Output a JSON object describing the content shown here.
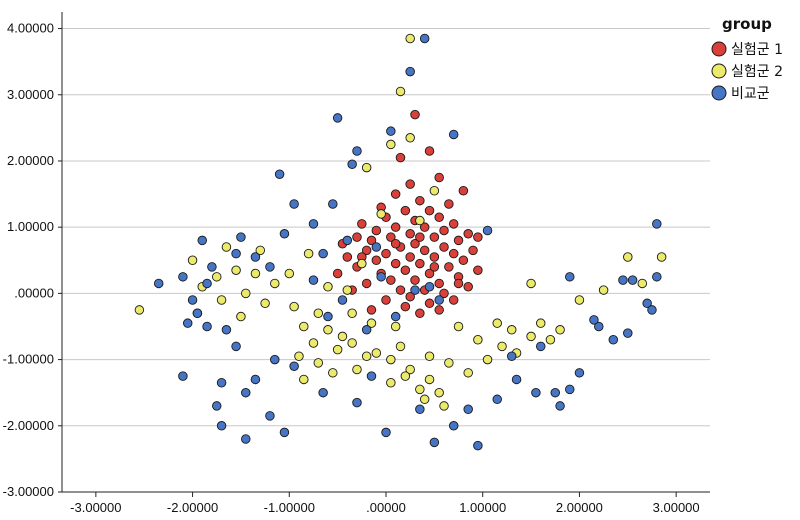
{
  "chart_data": {
    "type": "scatter",
    "title": "",
    "xlabel": "",
    "ylabel": "",
    "xlim": [
      -3.35,
      3.35
    ],
    "ylim": [
      -3.0,
      4.25
    ],
    "x_ticks": [
      -3,
      -2,
      -1,
      0,
      1,
      2,
      3
    ],
    "x_tick_labels": [
      "-3.00000",
      "-2.00000",
      "-1.00000",
      ".00000",
      "1.00000",
      "2.00000",
      "3.00000"
    ],
    "y_ticks": [
      4,
      3,
      2,
      1,
      0,
      -1,
      -2,
      -3
    ],
    "y_tick_labels": [
      "4.00000",
      "3.00000",
      "2.00000",
      "1.00000",
      ".00000",
      "-1.00000",
      "-2.00000",
      "-3.00000"
    ],
    "grid": "horizontal",
    "legend": {
      "title": "group",
      "position": "top-right"
    },
    "series": [
      {
        "name": "실험군 1",
        "color": "#d9403a",
        "points": [
          [
            0.45,
            2.15
          ],
          [
            0.3,
            2.7
          ],
          [
            0.15,
            2.05
          ],
          [
            0.55,
            1.75
          ],
          [
            0.25,
            1.65
          ],
          [
            0.8,
            1.55
          ],
          [
            0.1,
            1.5
          ],
          [
            0.35,
            1.4
          ],
          [
            0.65,
            1.35
          ],
          [
            -0.05,
            1.3
          ],
          [
            0.2,
            1.25
          ],
          [
            0.45,
            1.25
          ],
          [
            0.0,
            1.15
          ],
          [
            0.55,
            1.15
          ],
          [
            0.3,
            1.1
          ],
          [
            -0.25,
            1.05
          ],
          [
            0.7,
            1.05
          ],
          [
            0.1,
            1.0
          ],
          [
            0.4,
            1.0
          ],
          [
            -0.1,
            0.95
          ],
          [
            0.6,
            0.95
          ],
          [
            0.85,
            0.9
          ],
          [
            0.25,
            0.9
          ],
          [
            -0.3,
            0.85
          ],
          [
            0.05,
            0.85
          ],
          [
            0.5,
            0.85
          ],
          [
            0.75,
            0.8
          ],
          [
            -0.15,
            0.8
          ],
          [
            0.3,
            0.75
          ],
          [
            -0.45,
            0.75
          ],
          [
            0.15,
            0.7
          ],
          [
            0.6,
            0.7
          ],
          [
            0.9,
            0.65
          ],
          [
            -0.2,
            0.65
          ],
          [
            0.4,
            0.65
          ],
          [
            0.0,
            0.6
          ],
          [
            0.7,
            0.6
          ],
          [
            -0.4,
            0.55
          ],
          [
            0.25,
            0.55
          ],
          [
            0.5,
            0.55
          ],
          [
            0.8,
            0.5
          ],
          [
            -0.1,
            0.5
          ],
          [
            0.1,
            0.45
          ],
          [
            0.35,
            0.45
          ],
          [
            -0.3,
            0.4
          ],
          [
            0.65,
            0.4
          ],
          [
            0.95,
            0.35
          ],
          [
            0.2,
            0.35
          ],
          [
            -0.05,
            0.3
          ],
          [
            0.45,
            0.3
          ],
          [
            -0.5,
            0.3
          ],
          [
            0.75,
            0.25
          ],
          [
            0.3,
            0.2
          ],
          [
            0.05,
            0.2
          ],
          [
            0.55,
            0.15
          ],
          [
            -0.2,
            0.15
          ],
          [
            0.85,
            0.1
          ],
          [
            0.15,
            0.05
          ],
          [
            0.4,
            0.05
          ],
          [
            -0.35,
            0.05
          ],
          [
            0.6,
            0.0
          ],
          [
            0.25,
            -0.05
          ],
          [
            0.7,
            -0.1
          ],
          [
            0.0,
            -0.1
          ],
          [
            0.45,
            -0.15
          ],
          [
            0.2,
            -0.2
          ],
          [
            -0.15,
            -0.25
          ],
          [
            0.55,
            -0.25
          ],
          [
            0.35,
            -0.3
          ],
          [
            0.75,
            0.15
          ],
          [
            0.95,
            0.85
          ],
          [
            -0.25,
            0.55
          ],
          [
            0.1,
            0.75
          ],
          [
            0.5,
            0.4
          ],
          [
            0.35,
            0.85
          ]
        ]
      },
      {
        "name": "실험군 2",
        "color": "#ecea6b",
        "points": [
          [
            0.25,
            3.85
          ],
          [
            0.15,
            3.05
          ],
          [
            0.05,
            2.25
          ],
          [
            0.25,
            2.35
          ],
          [
            -0.2,
            1.9
          ],
          [
            0.5,
            1.55
          ],
          [
            -0.05,
            1.2
          ],
          [
            0.35,
            1.1
          ],
          [
            -0.8,
            0.6
          ],
          [
            -1.3,
            0.65
          ],
          [
            -1.65,
            0.7
          ],
          [
            -2.0,
            0.5
          ],
          [
            -1.55,
            0.35
          ],
          [
            -1.75,
            0.25
          ],
          [
            -1.9,
            0.1
          ],
          [
            -1.45,
            0.0
          ],
          [
            -1.7,
            -0.1
          ],
          [
            -1.25,
            -0.15
          ],
          [
            -2.55,
            -0.25
          ],
          [
            -1.95,
            -0.3
          ],
          [
            -1.5,
            -0.35
          ],
          [
            -0.95,
            -0.2
          ],
          [
            -0.7,
            -0.3
          ],
          [
            -0.85,
            -0.5
          ],
          [
            -0.6,
            -0.55
          ],
          [
            -0.45,
            -0.65
          ],
          [
            -0.75,
            -0.75
          ],
          [
            -0.5,
            -0.85
          ],
          [
            -0.9,
            -0.95
          ],
          [
            -0.7,
            -1.05
          ],
          [
            -0.55,
            -1.2
          ],
          [
            -0.85,
            -1.3
          ],
          [
            -0.3,
            -1.15
          ],
          [
            -0.2,
            -0.95
          ],
          [
            -0.35,
            -0.75
          ],
          [
            -0.1,
            -0.9
          ],
          [
            0.05,
            -1.0
          ],
          [
            0.25,
            -1.15
          ],
          [
            0.05,
            -1.35
          ],
          [
            0.35,
            -1.45
          ],
          [
            0.45,
            -1.3
          ],
          [
            0.55,
            -1.5
          ],
          [
            0.6,
            -1.7
          ],
          [
            0.4,
            -1.6
          ],
          [
            0.2,
            -1.25
          ],
          [
            0.65,
            -1.05
          ],
          [
            0.85,
            -1.2
          ],
          [
            1.05,
            -1.0
          ],
          [
            1.2,
            -0.8
          ],
          [
            1.3,
            -0.55
          ],
          [
            1.15,
            -0.45
          ],
          [
            1.5,
            -0.65
          ],
          [
            1.7,
            -0.7
          ],
          [
            1.6,
            -0.45
          ],
          [
            2.0,
            -0.1
          ],
          [
            1.5,
            0.15
          ],
          [
            2.25,
            0.05
          ],
          [
            2.5,
            0.55
          ],
          [
            2.65,
            0.15
          ],
          [
            2.85,
            0.55
          ],
          [
            1.8,
            -0.55
          ],
          [
            1.35,
            -0.9
          ],
          [
            0.95,
            -0.7
          ],
          [
            0.75,
            -0.5
          ],
          [
            -1.0,
            0.3
          ],
          [
            -0.25,
            0.45
          ],
          [
            -0.4,
            0.05
          ],
          [
            -0.6,
            0.1
          ],
          [
            -0.15,
            -0.45
          ],
          [
            0.1,
            -0.5
          ],
          [
            -1.15,
            0.15
          ],
          [
            -1.35,
            0.3
          ],
          [
            -0.35,
            -0.3
          ],
          [
            0.15,
            -0.8
          ],
          [
            0.45,
            -0.95
          ]
        ]
      },
      {
        "name": "비교군",
        "color": "#4675c6",
        "points": [
          [
            0.4,
            3.85
          ],
          [
            0.25,
            3.35
          ],
          [
            -0.5,
            2.65
          ],
          [
            0.7,
            2.4
          ],
          [
            0.05,
            2.45
          ],
          [
            -0.3,
            2.15
          ],
          [
            -0.35,
            1.95
          ],
          [
            -1.1,
            1.8
          ],
          [
            -0.95,
            1.35
          ],
          [
            -0.75,
            1.05
          ],
          [
            -1.05,
            0.9
          ],
          [
            -1.5,
            0.85
          ],
          [
            -1.9,
            0.8
          ],
          [
            -1.55,
            0.6
          ],
          [
            -1.35,
            0.55
          ],
          [
            -1.2,
            0.4
          ],
          [
            -1.8,
            0.4
          ],
          [
            -2.1,
            0.25
          ],
          [
            -2.35,
            0.15
          ],
          [
            -1.85,
            0.15
          ],
          [
            -2.0,
            -0.1
          ],
          [
            -1.95,
            -0.3
          ],
          [
            -2.05,
            -0.45
          ],
          [
            -1.85,
            -0.5
          ],
          [
            -1.65,
            -0.55
          ],
          [
            -1.55,
            -0.8
          ],
          [
            -1.15,
            -1.0
          ],
          [
            -0.95,
            -1.1
          ],
          [
            -1.35,
            -1.3
          ],
          [
            -1.7,
            -1.35
          ],
          [
            -2.1,
            -1.25
          ],
          [
            -1.45,
            -1.5
          ],
          [
            -1.75,
            -1.7
          ],
          [
            -1.2,
            -1.85
          ],
          [
            -1.05,
            -2.1
          ],
          [
            -1.45,
            -2.2
          ],
          [
            -1.7,
            -2.0
          ],
          [
            -0.65,
            -1.5
          ],
          [
            -0.3,
            -1.65
          ],
          [
            -0.15,
            -1.25
          ],
          [
            0.0,
            -2.1
          ],
          [
            0.35,
            -1.75
          ],
          [
            0.5,
            -2.25
          ],
          [
            0.7,
            -2.0
          ],
          [
            0.95,
            -2.3
          ],
          [
            0.85,
            -1.75
          ],
          [
            1.15,
            -1.6
          ],
          [
            1.35,
            -1.3
          ],
          [
            1.55,
            -1.5
          ],
          [
            1.75,
            -1.5
          ],
          [
            1.8,
            -1.7
          ],
          [
            1.9,
            -1.45
          ],
          [
            2.0,
            -1.2
          ],
          [
            2.2,
            -0.5
          ],
          [
            2.35,
            -0.7
          ],
          [
            2.5,
            -0.6
          ],
          [
            2.7,
            -0.15
          ],
          [
            2.75,
            -0.25
          ],
          [
            2.8,
            0.25
          ],
          [
            2.8,
            1.05
          ],
          [
            2.55,
            0.2
          ],
          [
            2.45,
            0.2
          ],
          [
            1.9,
            0.25
          ],
          [
            2.15,
            -0.4
          ],
          [
            1.6,
            -0.8
          ],
          [
            -0.1,
            0.7
          ],
          [
            -0.05,
            0.25
          ],
          [
            0.3,
            0.05
          ],
          [
            0.55,
            -0.1
          ],
          [
            -0.45,
            -0.1
          ],
          [
            -0.6,
            -0.35
          ],
          [
            -0.4,
            0.8
          ],
          [
            0.1,
            -0.35
          ],
          [
            -0.75,
            0.2
          ],
          [
            0.45,
            0.1
          ],
          [
            1.05,
            0.95
          ],
          [
            -0.2,
            -0.55
          ],
          [
            -0.55,
            1.35
          ],
          [
            -0.65,
            0.6
          ],
          [
            1.3,
            -0.95
          ]
        ]
      }
    ]
  }
}
